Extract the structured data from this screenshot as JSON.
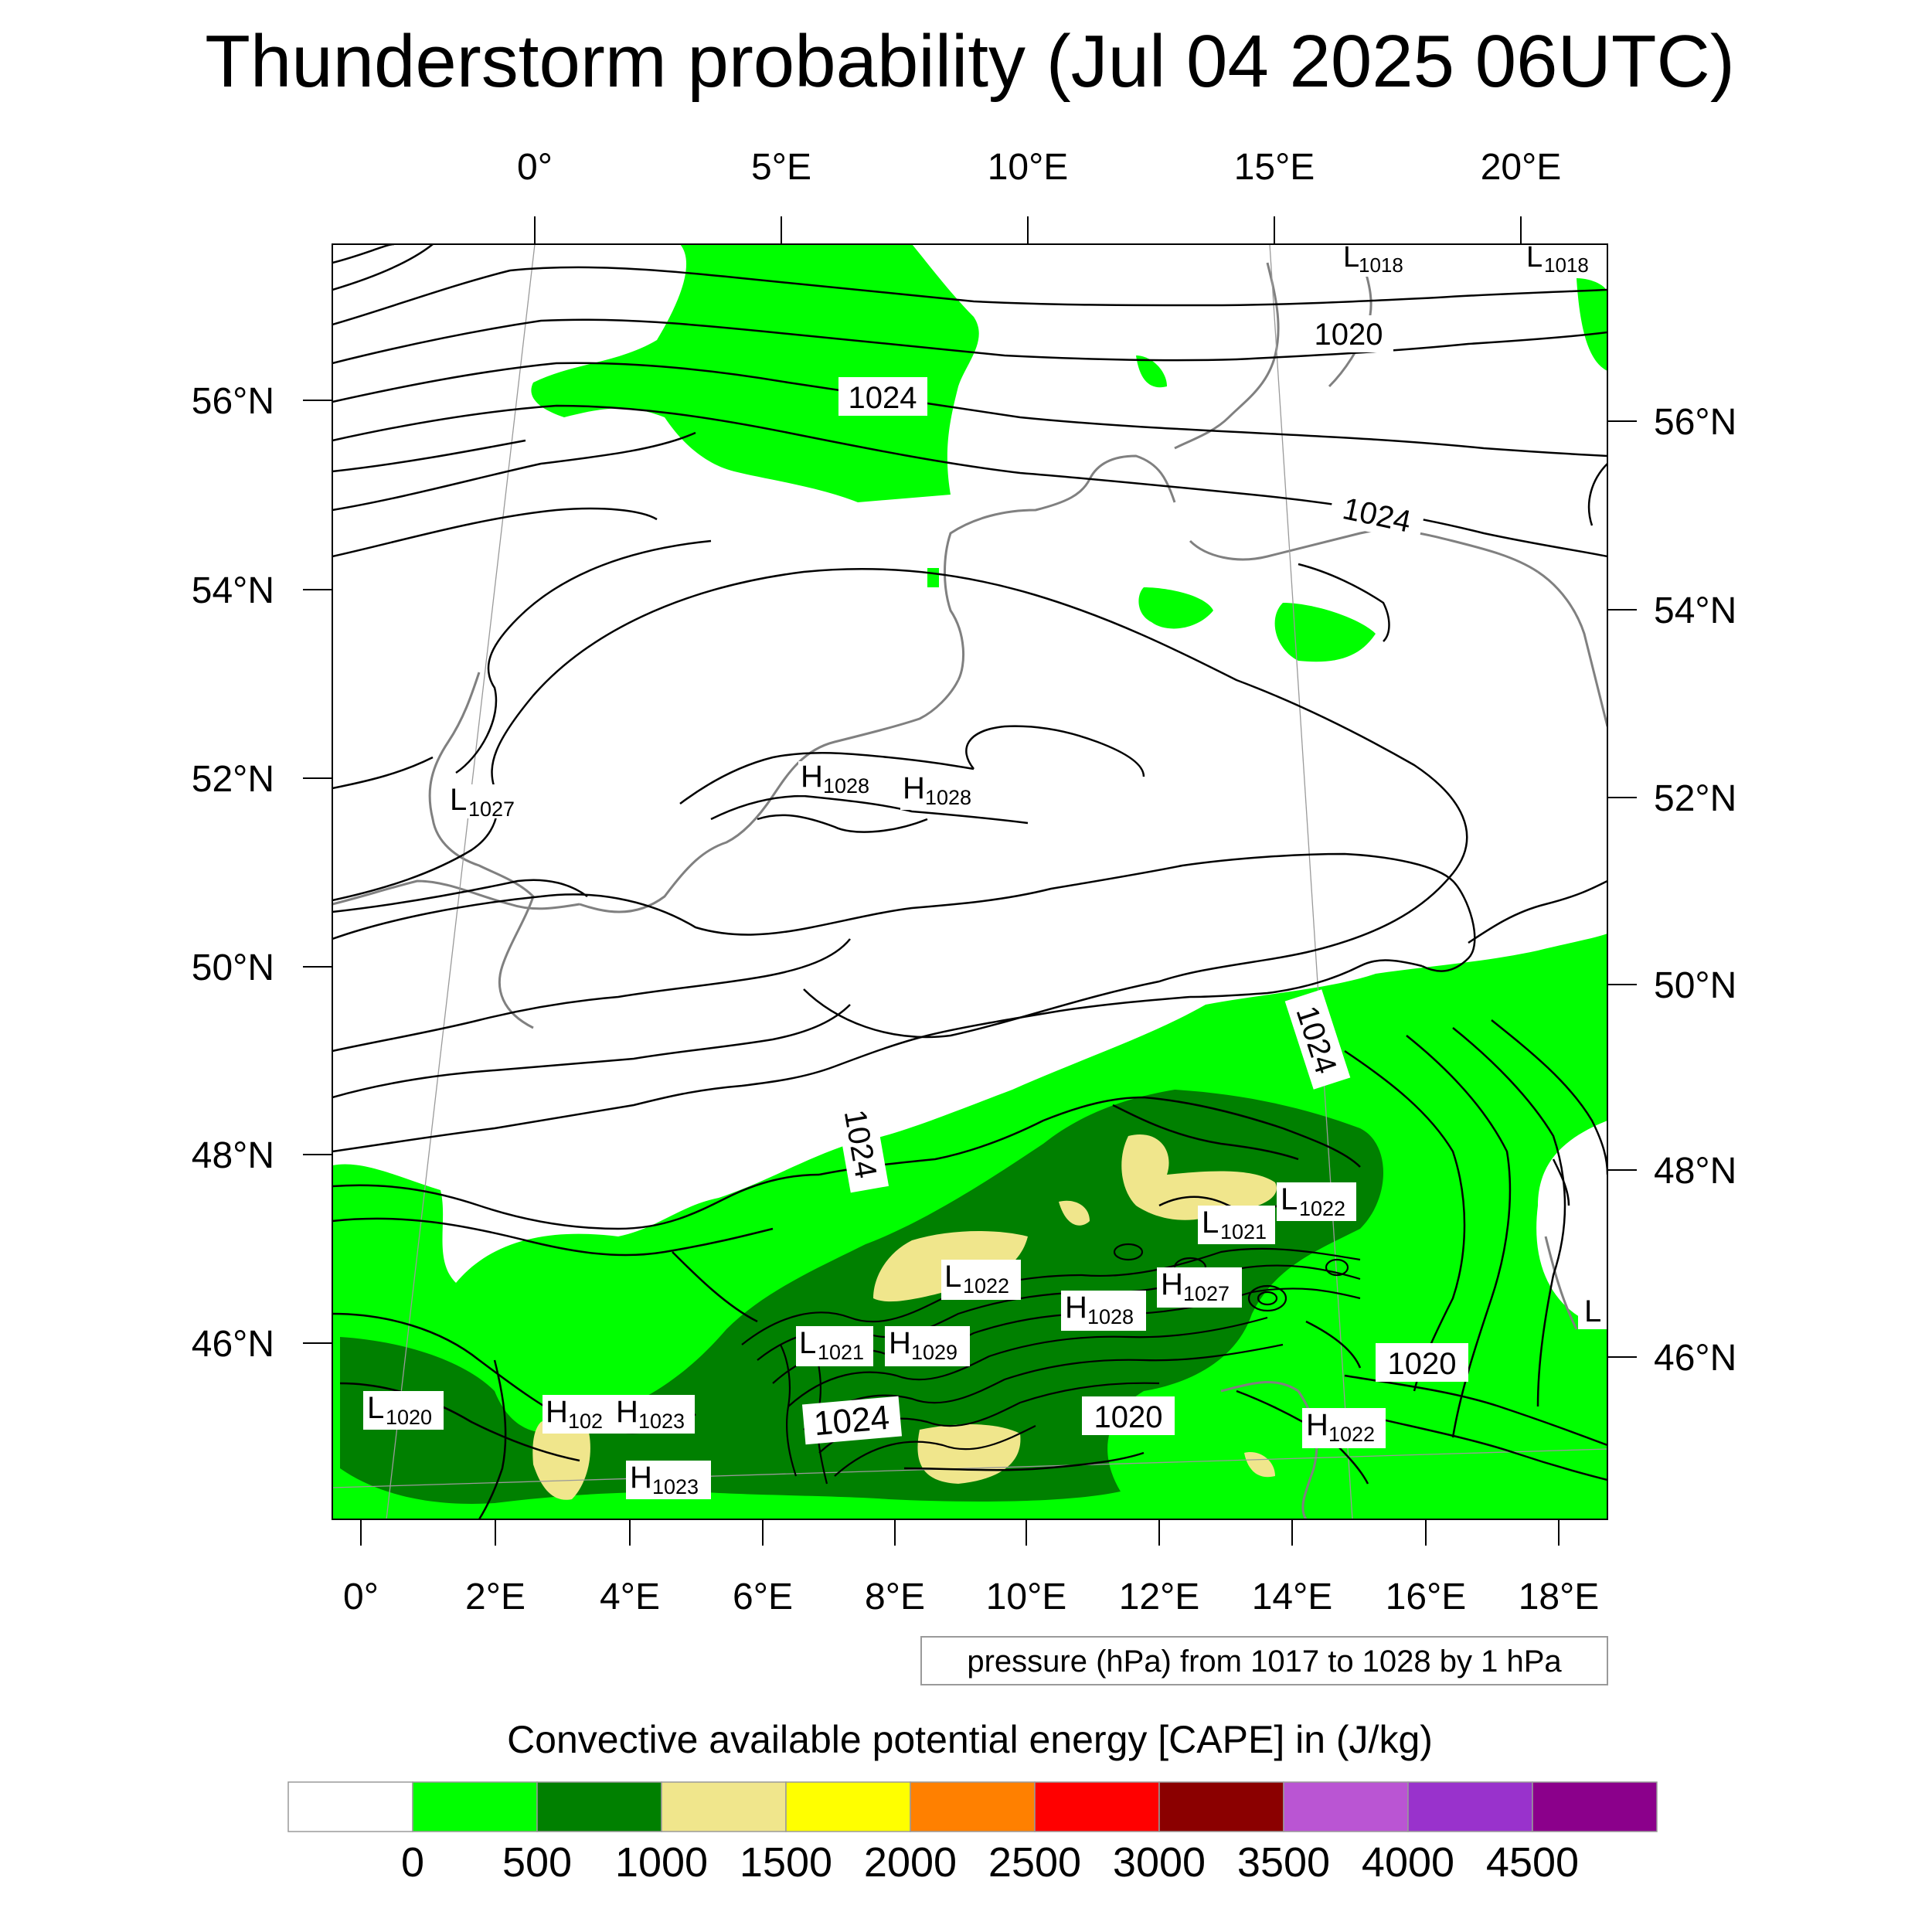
{
  "title": "Thunderstorm probability (Jul 04 2025 06UTC)",
  "top_lon_ticks": [
    "0°",
    "5°E",
    "10°E",
    "15°E",
    "20°E"
  ],
  "left_lat_ticks": [
    "56°N",
    "54°N",
    "52°N",
    "50°N",
    "48°N",
    "46°N"
  ],
  "right_lat_ticks": [
    "56°N",
    "54°N",
    "52°N",
    "50°N",
    "48°N",
    "46°N"
  ],
  "bottom_lon_ticks": [
    "0°",
    "2°E",
    "4°E",
    "6°E",
    "8°E",
    "10°E",
    "12°E",
    "14°E",
    "16°E",
    "18°E"
  ],
  "isobar_labels": [
    "1024",
    "1024",
    "1024",
    "1024",
    "1020",
    "1020",
    "1020",
    "1024"
  ],
  "pressure_centers": [
    {
      "kind": "L",
      "value": "1018",
      "display_kind": ""
    },
    {
      "kind": "L",
      "value": "1018"
    },
    {
      "kind": "L",
      "value": "1027"
    },
    {
      "kind": "H",
      "value": "1028"
    },
    {
      "kind": "H",
      "value": "1028"
    },
    {
      "kind": "L",
      "value": "1022"
    },
    {
      "kind": "L",
      "value": "1021"
    },
    {
      "kind": "L",
      "value": "1022"
    },
    {
      "kind": "H",
      "value": "1027"
    },
    {
      "kind": "H",
      "value": "1028"
    },
    {
      "kind": "L",
      "value": "1021"
    },
    {
      "kind": "H",
      "value": "1029"
    },
    {
      "kind": "L",
      "value": "1020"
    },
    {
      "kind": "H",
      "value": "102"
    },
    {
      "kind": "H",
      "value": "1023"
    },
    {
      "kind": "H",
      "value": "1023"
    },
    {
      "kind": "H",
      "value": "1022"
    },
    {
      "kind": "L",
      "value": ""
    }
  ],
  "contour_note": "pressure (hPa) from 1017 to 1028 by 1 hPa",
  "colorbar_title": "Convective available potential energy [CAPE] in (J/kg)",
  "colorbar_labels": [
    "0",
    "500",
    "1000",
    "1500",
    "2000",
    "2500",
    "3000",
    "3500",
    "4000",
    "4500"
  ],
  "colorbar_colors": [
    "#ffffff",
    "#00ff00",
    "#008000",
    "#f0e68c",
    "#ffff00",
    "#ff8000",
    "#ff0000",
    "#8b0000",
    "#ba55d3",
    "#9932cc",
    "#8b008b"
  ],
  "colors": {
    "cape_low": "#00ff00",
    "cape_mid": "#008000",
    "cape_high": "#f0e68c",
    "coast": "#808080",
    "isobar": "#000000"
  }
}
